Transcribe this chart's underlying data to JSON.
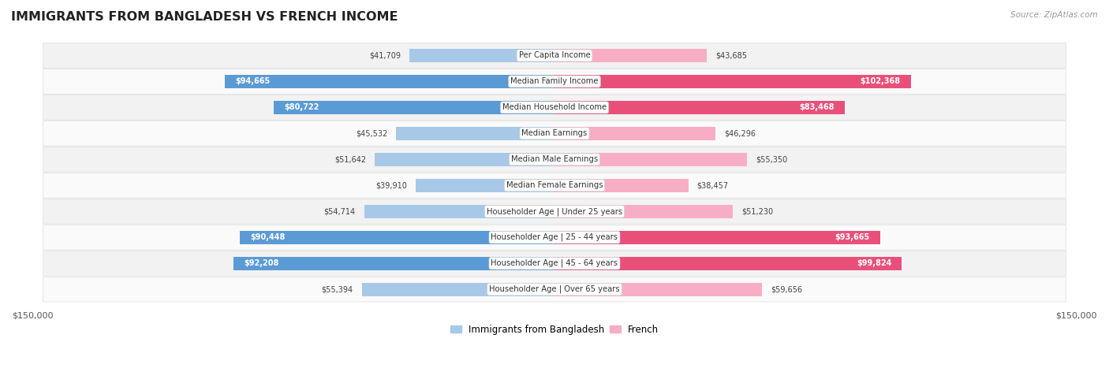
{
  "title": "IMMIGRANTS FROM BANGLADESH VS FRENCH INCOME",
  "source": "Source: ZipAtlas.com",
  "categories": [
    "Per Capita Income",
    "Median Family Income",
    "Median Household Income",
    "Median Earnings",
    "Median Male Earnings",
    "Median Female Earnings",
    "Householder Age | Under 25 years",
    "Householder Age | 25 - 44 years",
    "Householder Age | 45 - 64 years",
    "Householder Age | Over 65 years"
  ],
  "bangladesh_values": [
    41709,
    94665,
    80722,
    45532,
    51642,
    39910,
    54714,
    90448,
    92208,
    55394
  ],
  "french_values": [
    43685,
    102368,
    83468,
    46296,
    55350,
    38457,
    51230,
    93665,
    99824,
    59656
  ],
  "bangladesh_color_light": "#a8c8e8",
  "bangladesh_color_dark": "#5b9bd5",
  "french_color_light": "#f7aec4",
  "french_color_dark": "#e8507a",
  "bar_height": 0.52,
  "max_value": 150000,
  "background_color": "#ffffff",
  "row_bg_even": "#f2f2f2",
  "row_bg_odd": "#fafafa",
  "legend_bangladesh": "Immigrants from Bangladesh",
  "legend_french": "French",
  "inside_label_threshold": 75000
}
